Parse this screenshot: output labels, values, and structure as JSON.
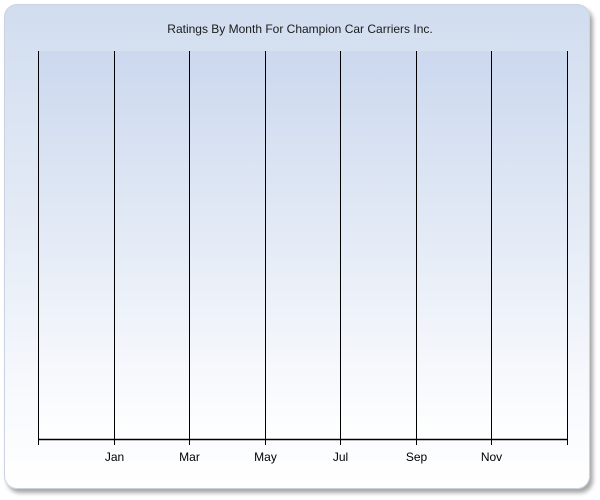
{
  "chart_data": {
    "type": "line",
    "title": "Ratings By Month For Champion Car Carriers Inc.",
    "xlabel": "",
    "ylabel": "",
    "x_ticks": [
      "",
      "Jan",
      "Mar",
      "May",
      "Jul",
      "Sep",
      "Nov",
      ""
    ],
    "series": [],
    "grid": {
      "vertical": true,
      "horizontal": false
    },
    "colors": {
      "plot_gradient_top": "#cbd8ee",
      "plot_gradient_bottom": "#ffffff",
      "gridline": "#000000"
    }
  }
}
